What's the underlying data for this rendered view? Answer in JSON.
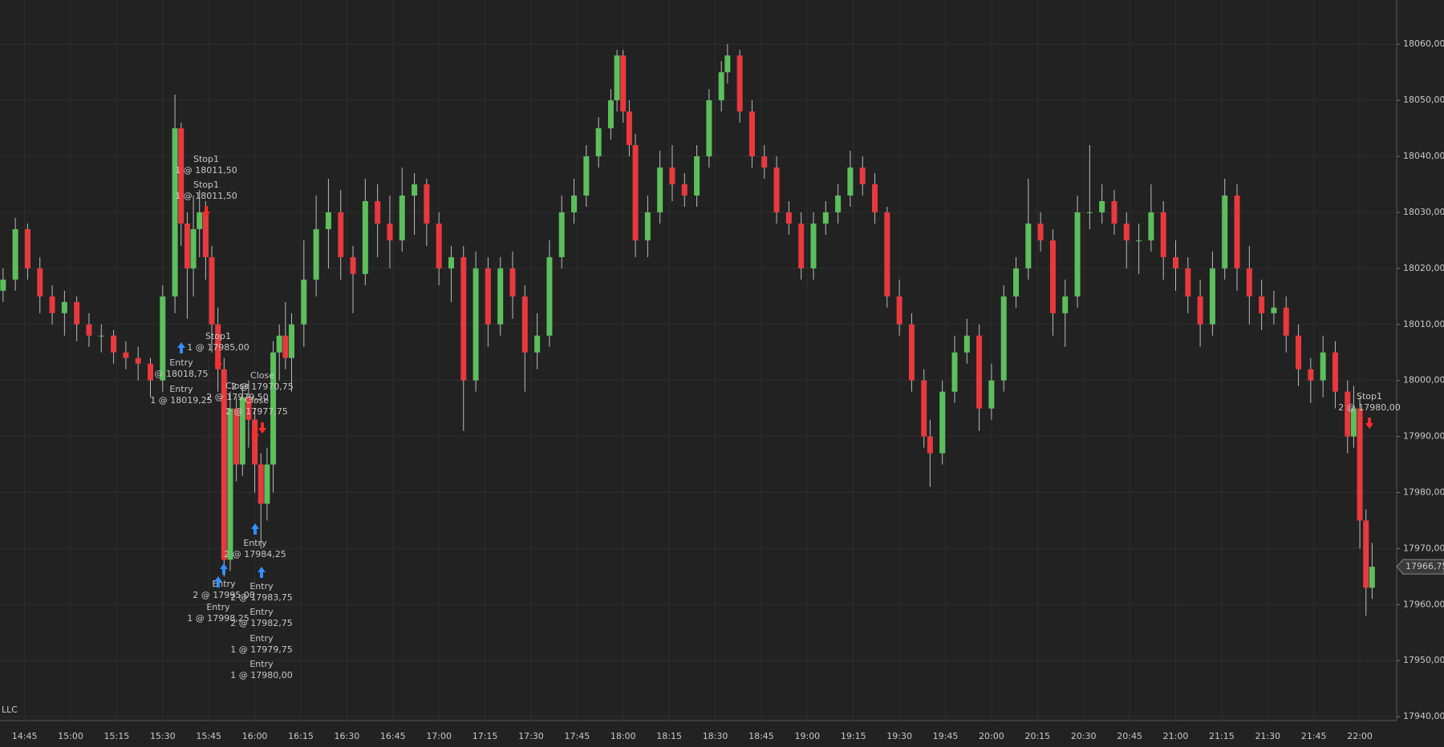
{
  "chart_data": {
    "type": "candlestick",
    "x": [
      "14:38",
      "14:42",
      "14:46",
      "14:50",
      "14:54",
      "14:58",
      "15:02",
      "15:06",
      "15:10",
      "15:14",
      "15:18",
      "15:22",
      "15:26",
      "15:30",
      "15:34",
      "15:36",
      "15:38",
      "15:40",
      "15:42",
      "15:44",
      "15:46",
      "15:48",
      "15:50",
      "15:52",
      "15:54",
      "15:56",
      "15:58",
      "16:00",
      "16:02",
      "16:04",
      "16:06",
      "16:08",
      "16:10",
      "16:12",
      "16:16",
      "16:20",
      "16:24",
      "16:28",
      "16:32",
      "16:36",
      "16:40",
      "16:44",
      "16:48",
      "16:52",
      "16:56",
      "17:00",
      "17:04",
      "17:08",
      "17:12",
      "17:16",
      "17:20",
      "17:24",
      "17:28",
      "17:32",
      "17:36",
      "17:40",
      "17:44",
      "17:48",
      "17:52",
      "17:56",
      "17:58",
      "18:00",
      "18:02",
      "18:04",
      "18:08",
      "18:12",
      "18:16",
      "18:20",
      "18:24",
      "18:28",
      "18:32",
      "18:34",
      "18:38",
      "18:42",
      "18:46",
      "18:50",
      "18:54",
      "18:58",
      "19:02",
      "19:06",
      "19:10",
      "19:14",
      "19:18",
      "19:22",
      "19:26",
      "19:30",
      "19:34",
      "19:38",
      "19:40",
      "19:44",
      "19:48",
      "19:52",
      "19:56",
      "20:00",
      "20:04",
      "20:08",
      "20:12",
      "20:16",
      "20:20",
      "20:24",
      "20:28",
      "20:32",
      "20:36",
      "20:40",
      "20:44",
      "20:48",
      "20:52",
      "20:56",
      "21:00",
      "21:04",
      "21:08",
      "21:12",
      "21:16",
      "21:20",
      "21:24",
      "21:28",
      "21:32",
      "21:36",
      "21:40",
      "21:44",
      "21:48",
      "21:52",
      "21:56",
      "21:58",
      "22:00",
      "22:02",
      "22:04"
    ],
    "open": [
      18016,
      18018,
      18027,
      18020,
      18015,
      18012,
      18014,
      18010,
      18008,
      18008,
      18005,
      18004,
      18003,
      18000,
      18015,
      18045,
      18028,
      18020,
      18027,
      18030,
      18022,
      18010,
      18002,
      17968,
      17995,
      17985,
      17997,
      17993,
      17985,
      17978,
      17985,
      18005,
      18008,
      18004,
      18010,
      18018,
      18027,
      18030,
      18022,
      18019,
      18032,
      18028,
      18025,
      18033,
      18035,
      18028,
      18020,
      18022,
      18000,
      18020,
      18010,
      18020,
      18015,
      18005,
      18008,
      18022,
      18030,
      18033,
      18040,
      18045,
      18050,
      18058,
      18048,
      18042,
      18025,
      18030,
      18038,
      18035,
      18033,
      18040,
      18050,
      18055,
      18058,
      18048,
      18040,
      18038,
      18030,
      18028,
      18020,
      18028,
      18030,
      18033,
      18038,
      18035,
      18030,
      18015,
      18010,
      18000,
      17990,
      17987,
      17998,
      18005,
      18008,
      17995,
      18000,
      18015,
      18020,
      18028,
      18025,
      18012,
      18015,
      18030,
      18030,
      18032,
      18028,
      18025,
      18025,
      18030,
      18022,
      18020,
      18015,
      18010,
      18020,
      18033,
      18020,
      18015,
      18012,
      18013,
      18008,
      18002,
      18000,
      18005,
      17998,
      17990,
      17995,
      17975,
      17963
    ],
    "high": [
      18020,
      18029,
      18028,
      18022,
      18017,
      18016,
      18015,
      18012,
      18010,
      18009,
      18007,
      18006,
      18004,
      18017,
      18051,
      18046,
      18030,
      18033,
      18034,
      18032,
      18024,
      18013,
      18004,
      17998,
      17997,
      17999,
      18000,
      17995,
      17987,
      17988,
      18007,
      18010,
      18014,
      18012,
      18025,
      18033,
      18036,
      18034,
      18024,
      18036,
      18035,
      18033,
      18038,
      18037,
      18036,
      18030,
      18024,
      18024,
      18023,
      18022,
      18022,
      18023,
      18017,
      18012,
      18025,
      18033,
      18036,
      18042,
      18047,
      18052,
      18059,
      18059,
      18050,
      18044,
      18033,
      18041,
      18042,
      18037,
      18042,
      18052,
      18057,
      18060,
      18059,
      18050,
      18042,
      18040,
      18032,
      18030,
      18030,
      18032,
      18035,
      18041,
      18040,
      18037,
      18031,
      18018,
      18012,
      18002,
      17993,
      18000,
      18008,
      18011,
      18010,
      18003,
      18017,
      18022,
      18036,
      18030,
      18027,
      18018,
      18033,
      18042,
      18035,
      18034,
      18030,
      18028,
      18035,
      18032,
      18025,
      18022,
      18018,
      18023,
      18036,
      18035,
      18024,
      18018,
      18016,
      18015,
      18010,
      18004,
      18008,
      18007,
      18000,
      17999,
      17997,
      17977,
      17971
    ],
    "low": [
      18014,
      18016,
      18018,
      18012,
      18010,
      18008,
      18007,
      18006,
      18005,
      18003,
      18002,
      18000,
      17997,
      17998,
      18012,
      18024,
      18011,
      18015,
      18022,
      18018,
      18005,
      17998,
      17965,
      17966,
      17982,
      17983,
      17988,
      17980,
      17970,
      17975,
      17980,
      18000,
      18002,
      17998,
      18006,
      18015,
      18020,
      18018,
      18012,
      18017,
      18022,
      18020,
      18023,
      18026,
      18024,
      18017,
      18014,
      17991,
      17998,
      18006,
      18008,
      18011,
      17998,
      18002,
      18006,
      18020,
      18028,
      18031,
      18038,
      18043,
      18048,
      18046,
      18040,
      18022,
      18022,
      18028,
      18032,
      18031,
      18031,
      18038,
      18048,
      18053,
      18046,
      18038,
      18036,
      18028,
      18026,
      18018,
      18018,
      18026,
      18028,
      18031,
      18033,
      18028,
      18013,
      18008,
      17998,
      17988,
      17981,
      17985,
      17996,
      18003,
      17991,
      17993,
      17998,
      18013,
      18018,
      18023,
      18008,
      18006,
      18013,
      18027,
      18028,
      18026,
      18020,
      18019,
      18023,
      18018,
      18016,
      18012,
      18006,
      18008,
      18018,
      18016,
      18010,
      18009,
      18010,
      18005,
      17999,
      17996,
      17997,
      17995,
      17987,
      17988,
      17970,
      17958,
      17961
    ],
    "close": [
      18018,
      18027,
      18020,
      18015,
      18012,
      18014,
      18010,
      18008,
      18008,
      18005,
      18004,
      18003,
      18000,
      18015,
      18045,
      18028,
      18020,
      18027,
      18030,
      18022,
      18010,
      18002,
      17968,
      17995,
      17985,
      17997,
      17993,
      17985,
      17978,
      17985,
      18005,
      18008,
      18004,
      18010,
      18018,
      18027,
      18030,
      18022,
      18019,
      18032,
      18028,
      18025,
      18033,
      18035,
      18028,
      18020,
      18022,
      18000,
      18020,
      18010,
      18020,
      18015,
      18005,
      18008,
      18022,
      18030,
      18033,
      18040,
      18045,
      18050,
      18058,
      18048,
      18042,
      18025,
      18030,
      18038,
      18035,
      18033,
      18040,
      18050,
      18055,
      18058,
      18048,
      18040,
      18038,
      18030,
      18028,
      18020,
      18028,
      18030,
      18033,
      18038,
      18035,
      18030,
      18015,
      18010,
      18000,
      17990,
      17987,
      17998,
      18005,
      18008,
      17995,
      18000,
      18015,
      18020,
      18028,
      18025,
      18012,
      18015,
      18030,
      18030,
      18032,
      18028,
      18025,
      18025,
      18030,
      18022,
      18020,
      18015,
      18010,
      18020,
      18033,
      18020,
      18015,
      18012,
      18013,
      18008,
      18002,
      18000,
      18005,
      17998,
      17990,
      17995,
      17975,
      17963,
      17966.75
    ],
    "up_color": "#5cbf5c",
    "down_color": "#e8393e",
    "xlim": [
      "14:37",
      "22:12"
    ],
    "xticks": [
      "14:45",
      "15:00",
      "15:15",
      "15:30",
      "15:45",
      "16:00",
      "16:15",
      "16:30",
      "16:45",
      "17:00",
      "17:15",
      "17:30",
      "17:45",
      "18:00",
      "18:15",
      "18:30",
      "18:45",
      "19:00",
      "19:15",
      "19:30",
      "19:45",
      "20:00",
      "20:15",
      "20:30",
      "20:45",
      "21:00",
      "21:15",
      "21:30",
      "21:45",
      "22:00"
    ],
    "ylim": [
      17939.3,
      18067.9
    ],
    "yticks": [
      {
        "value": 17940,
        "label": "17940,00"
      },
      {
        "value": 17950,
        "label": "17950,00"
      },
      {
        "value": 17960,
        "label": "17960,00"
      },
      {
        "value": 17970,
        "label": "17970,00"
      },
      {
        "value": 17980,
        "label": "17980,00"
      },
      {
        "value": 17990,
        "label": "17990,00"
      },
      {
        "value": 18000,
        "label": "18000,00"
      },
      {
        "value": 18010,
        "label": "18010,00"
      },
      {
        "value": 18020,
        "label": "18020,00"
      },
      {
        "value": 18030,
        "label": "18030,00"
      },
      {
        "value": 18040,
        "label": "18040,00"
      },
      {
        "value": 18050,
        "label": "18050,00"
      },
      {
        "value": 18060,
        "label": "18060,00"
      }
    ],
    "grid": true,
    "current_price": {
      "value": 17966.75,
      "label": "17966,75"
    },
    "annotations": [
      [
        "Stop1",
        "1 @ 18011,50"
      ],
      [
        "Stop1",
        "1 @ 18011,50"
      ],
      [
        "Stop1",
        "1 @ 17985,00"
      ],
      [
        "Entry",
        "@ 18018,75"
      ],
      [
        "Entry",
        "1 @ 18019,25"
      ],
      [
        "Close",
        "2 @ 17970,75"
      ],
      [
        "Close",
        "2 @ 17979,50"
      ],
      [
        "Close",
        "2 @ 17977,75"
      ],
      [
        "Entry",
        "2 @ 17984,25"
      ],
      [
        "Entry",
        "2 @ 17995,00"
      ],
      [
        "Entry",
        "1 @ 17998,25"
      ],
      [
        "Entry",
        "2 @ 17983,75"
      ],
      [
        "Entry",
        "2 @ 17982,75"
      ],
      [
        "Entry",
        "1 @ 17979,75"
      ],
      [
        "Entry",
        "1 @ 17980,00"
      ],
      [
        "Stop1",
        "2 @ 17980,00"
      ]
    ],
    "footer": "LLC"
  }
}
